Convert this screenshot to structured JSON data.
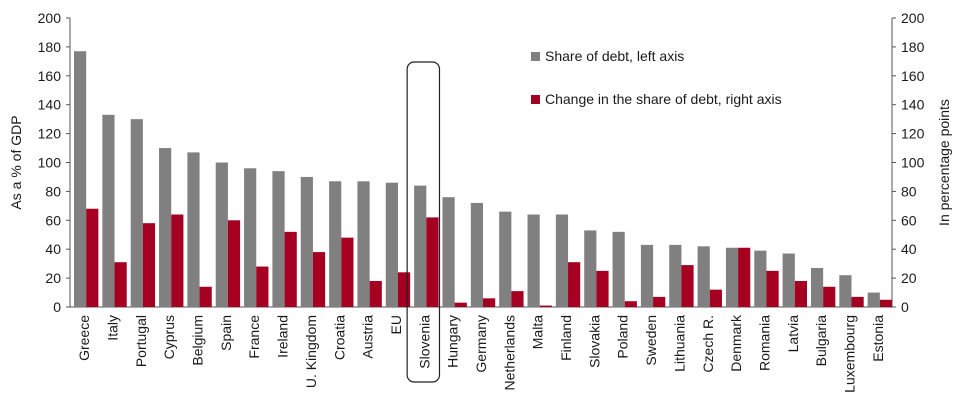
{
  "chart_data": {
    "type": "bar",
    "categories": [
      "Greece",
      "Italy",
      "Portugal",
      "Cyprus",
      "Belgium",
      "Spain",
      "France",
      "Ireland",
      "U. Kingdom",
      "Croatia",
      "Austria",
      "EU",
      "Slovenia",
      "Hungary",
      "Germany",
      "Netherlands",
      "Malta",
      "Finland",
      "Slovakia",
      "Poland",
      "Sweden",
      "Lithuania",
      "Czech R.",
      "Denmark",
      "Romania",
      "Latvia",
      "Bulgaria",
      "Luxembourg",
      "Estonia"
    ],
    "series": [
      {
        "name": "Share of debt, left axis",
        "axis": "left",
        "color": "#808080",
        "values": [
          177,
          133,
          130,
          110,
          107,
          100,
          96,
          94,
          90,
          87,
          87,
          86,
          84,
          76,
          72,
          66,
          64,
          64,
          53,
          52,
          43,
          43,
          42,
          41,
          39,
          37,
          27,
          22,
          10
        ]
      },
      {
        "name": "Change in the share of debt, right axis",
        "axis": "right",
        "color": "#a50021",
        "values": [
          68,
          31,
          58,
          64,
          14,
          60,
          28,
          52,
          38,
          48,
          18,
          24,
          62,
          3,
          6,
          11,
          1,
          31,
          25,
          4,
          7,
          29,
          12,
          41,
          25,
          18,
          14,
          7,
          5
        ]
      }
    ],
    "highlight": "Slovenia",
    "ylabel_left": "As a % of GDP",
    "ylabel_right": "In percentage points",
    "ylim_left": [
      0,
      200
    ],
    "ylim_right": [
      0,
      200
    ],
    "yticks": [
      0,
      20,
      40,
      60,
      80,
      100,
      120,
      140,
      160,
      180,
      200
    ],
    "legend_position": "top-right",
    "grid": false
  }
}
